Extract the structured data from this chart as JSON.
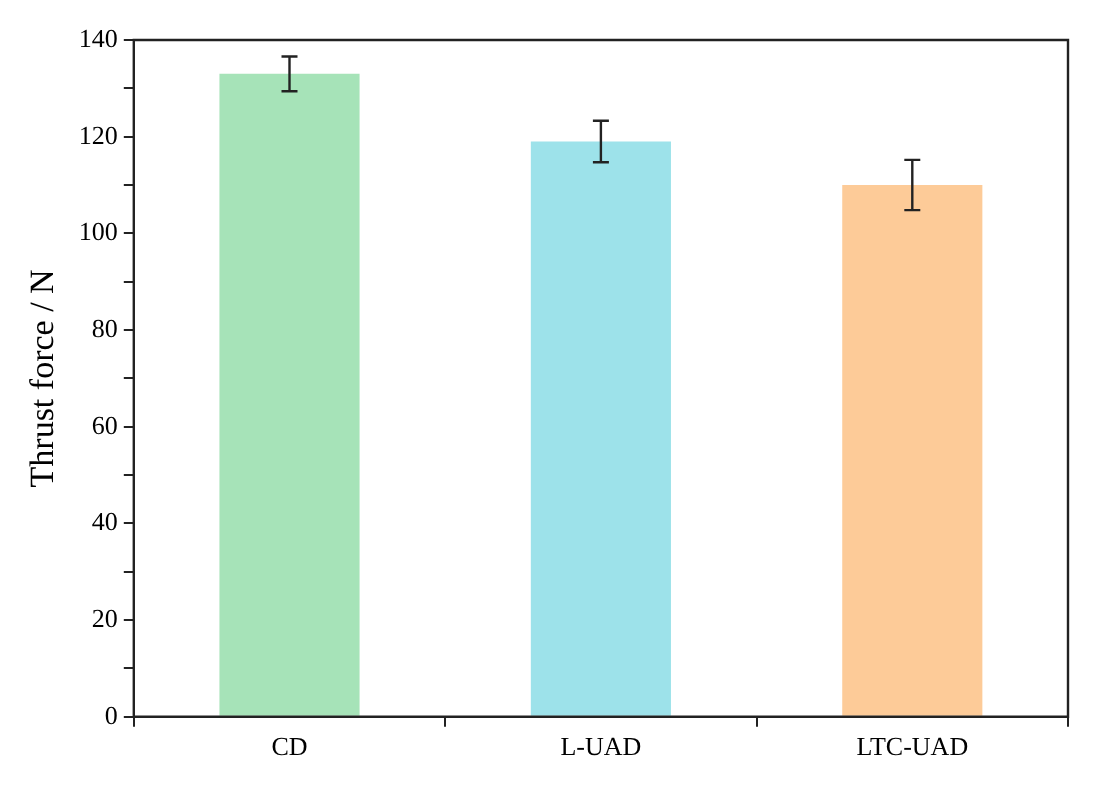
{
  "chart_data": {
    "type": "bar",
    "ylabel": "Thrust force / N",
    "categories": [
      "CD",
      "L-UAD",
      "LTC-UAD"
    ],
    "values": [
      133,
      119,
      110
    ],
    "colors": [
      "#a6e3b8",
      "#9de2ea",
      "#fdcb98"
    ],
    "errors": [
      3.6,
      4.3,
      5.2
    ],
    "ylim": [
      0,
      140
    ],
    "yticks": [
      0,
      {
        "value": 10,
        "label": null
      },
      20,
      {
        "value": 30,
        "label": null
      },
      40,
      {
        "value": 50,
        "label": null
      },
      60,
      {
        "value": 70,
        "label": null
      },
      80,
      {
        "value": 90,
        "label": null
      },
      100,
      {
        "value": 110,
        "label": null
      },
      120,
      {
        "value": 130,
        "label": null
      },
      140
    ],
    "grid": false,
    "legend": false
  }
}
